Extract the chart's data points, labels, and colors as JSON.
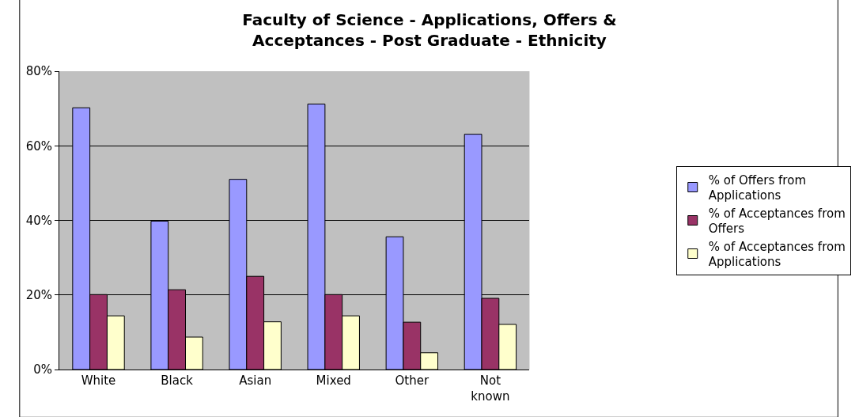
{
  "chart_data": {
    "type": "bar",
    "title": "Faculty of Science - Applications, Offers & Acceptances - Post Graduate - Ethnicity",
    "categories": [
      "White",
      "Black",
      "Asian",
      "Mixed",
      "Other",
      "Not known"
    ],
    "series": [
      {
        "name": "% of Offers from Applications",
        "color": "#9999ff",
        "values": [
          70.2,
          39.8,
          51.0,
          71.2,
          35.6,
          63.1
        ]
      },
      {
        "name": "% of Acceptances from Offers",
        "color": "#993366",
        "values": [
          20.1,
          21.4,
          25.0,
          20.1,
          12.7,
          19.1
        ]
      },
      {
        "name": "% of Acceptances from Applications",
        "color": "#ffffcc",
        "values": [
          14.4,
          8.7,
          12.8,
          14.4,
          4.5,
          12.1
        ]
      }
    ],
    "ylim": [
      0,
      80
    ],
    "yticks": [
      {
        "value": 0,
        "label": "0%"
      },
      {
        "value": 20,
        "label": "20%"
      },
      {
        "value": 40,
        "label": "40%"
      },
      {
        "value": 60,
        "label": "60%"
      },
      {
        "value": 80,
        "label": "80%"
      }
    ],
    "grid": "y",
    "legend": "right"
  }
}
